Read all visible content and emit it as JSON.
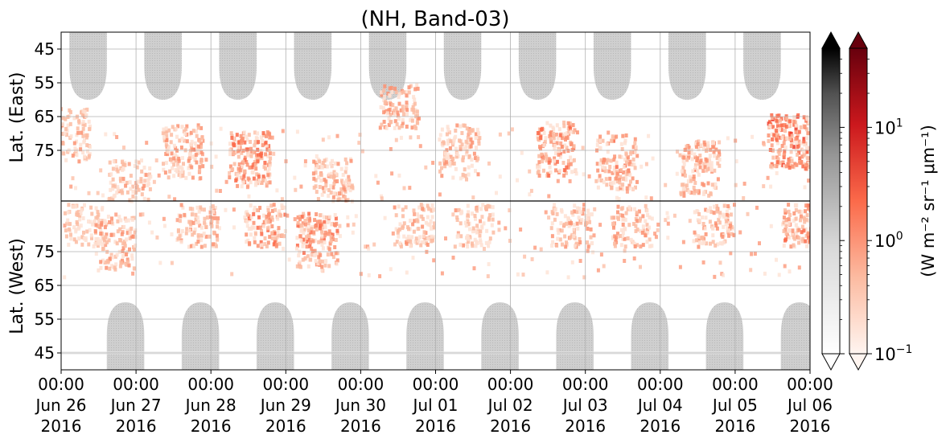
{
  "chart_data": {
    "type": "heatmap",
    "title": "(NH, Band-03)",
    "xlabel": "",
    "ylabel_top": "Lat. (East)",
    "ylabel_bottom": "Lat. (West)",
    "x_tick_labels": [
      [
        "00:00",
        "Jun 26",
        "2016"
      ],
      [
        "00:00",
        "Jun 27",
        "2016"
      ],
      [
        "00:00",
        "Jun 28",
        "2016"
      ],
      [
        "00:00",
        "Jun 29",
        "2016"
      ],
      [
        "00:00",
        "Jun 30",
        "2016"
      ],
      [
        "00:00",
        "Jul 01",
        "2016"
      ],
      [
        "00:00",
        "Jul 02",
        "2016"
      ],
      [
        "00:00",
        "Jul 03",
        "2016"
      ],
      [
        "00:00",
        "Jul 04",
        "2016"
      ],
      [
        "00:00",
        "Jul 05",
        "2016"
      ],
      [
        "00:00",
        "Jul 06",
        "2016"
      ]
    ],
    "x_range_days": [
      "Jun 26 2016 00:00",
      "Jul 06 2016 00:00"
    ],
    "y_ticks_east": [
      45,
      55,
      65,
      75
    ],
    "y_ticks_west": [
      75,
      65,
      55,
      45
    ],
    "y_range": {
      "east_lat": [
        40,
        90
      ],
      "west_lat": [
        90,
        40
      ]
    },
    "grid": true,
    "gray_colorbar": {
      "cmap": "Greys",
      "scale": "log",
      "range": [
        0.1,
        50
      ],
      "extend": "both"
    },
    "red_colorbar": {
      "cmap": "Reds",
      "scale": "log",
      "range": [
        0.1,
        50
      ],
      "extend": "both",
      "ticks": [
        {
          "value": 0.1,
          "base": "10",
          "exp": "−1"
        },
        {
          "value": 1,
          "base": "10",
          "exp": "0"
        },
        {
          "value": 10,
          "base": "10",
          "exp": "1"
        }
      ],
      "label": "(W m⁻² sr⁻¹ μm⁻¹)"
    },
    "gray_daylight_regions": {
      "east_day_centers": [
        0.36,
        1.36,
        2.36,
        3.36,
        4.36,
        5.36,
        6.36,
        7.36,
        8.36,
        9.36
      ],
      "west_day_centers": [
        0.86,
        1.86,
        2.86,
        3.86,
        4.86,
        5.86,
        6.86,
        7.86,
        8.86,
        9.86
      ],
      "lat_min_reached": 60
    },
    "red_features": [
      {
        "day": 0.1,
        "lat": 70,
        "side": "east",
        "value": 1.5
      },
      {
        "day": 0.7,
        "lat": 78,
        "side": "west",
        "value": 3
      },
      {
        "day": 1.6,
        "lat": 75,
        "side": "east",
        "value": 4
      },
      {
        "day": 2.5,
        "lat": 77,
        "side": "east",
        "value": 8
      },
      {
        "day": 3.4,
        "lat": 79,
        "side": "west",
        "value": 6
      },
      {
        "day": 4.5,
        "lat": 60,
        "side": "east",
        "value": 3
      },
      {
        "day": 5.3,
        "lat": 75,
        "side": "east",
        "value": 2
      },
      {
        "day": 6.6,
        "lat": 74,
        "side": "east",
        "value": 5
      },
      {
        "day": 7.4,
        "lat": 78,
        "side": "east",
        "value": 4
      },
      {
        "day": 8.5,
        "lat": 80,
        "side": "east",
        "value": 4
      },
      {
        "day": 9.7,
        "lat": 72,
        "side": "east",
        "value": 10
      }
    ]
  }
}
